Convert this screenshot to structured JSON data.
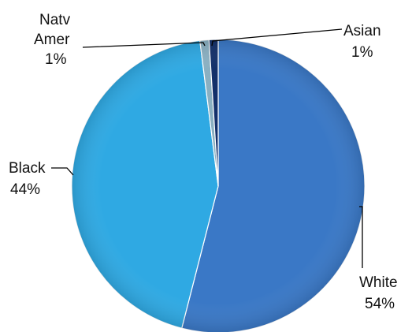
{
  "chart_data": {
    "type": "pie",
    "title": "",
    "slices": [
      {
        "name": "White",
        "value": 54,
        "label": "54%",
        "color": "#3a78c6"
      },
      {
        "name": "Black",
        "value": 44,
        "label": "44%",
        "color": "#2fa9e3"
      },
      {
        "name": "Natv Amer",
        "name_lines": [
          "Natv",
          "Amer"
        ],
        "value": 1,
        "label": "1%",
        "color": "#8ab0c2"
      },
      {
        "name": "Asian",
        "value": 1,
        "label": "1%",
        "color": "#13306a"
      }
    ],
    "legend": "none"
  }
}
